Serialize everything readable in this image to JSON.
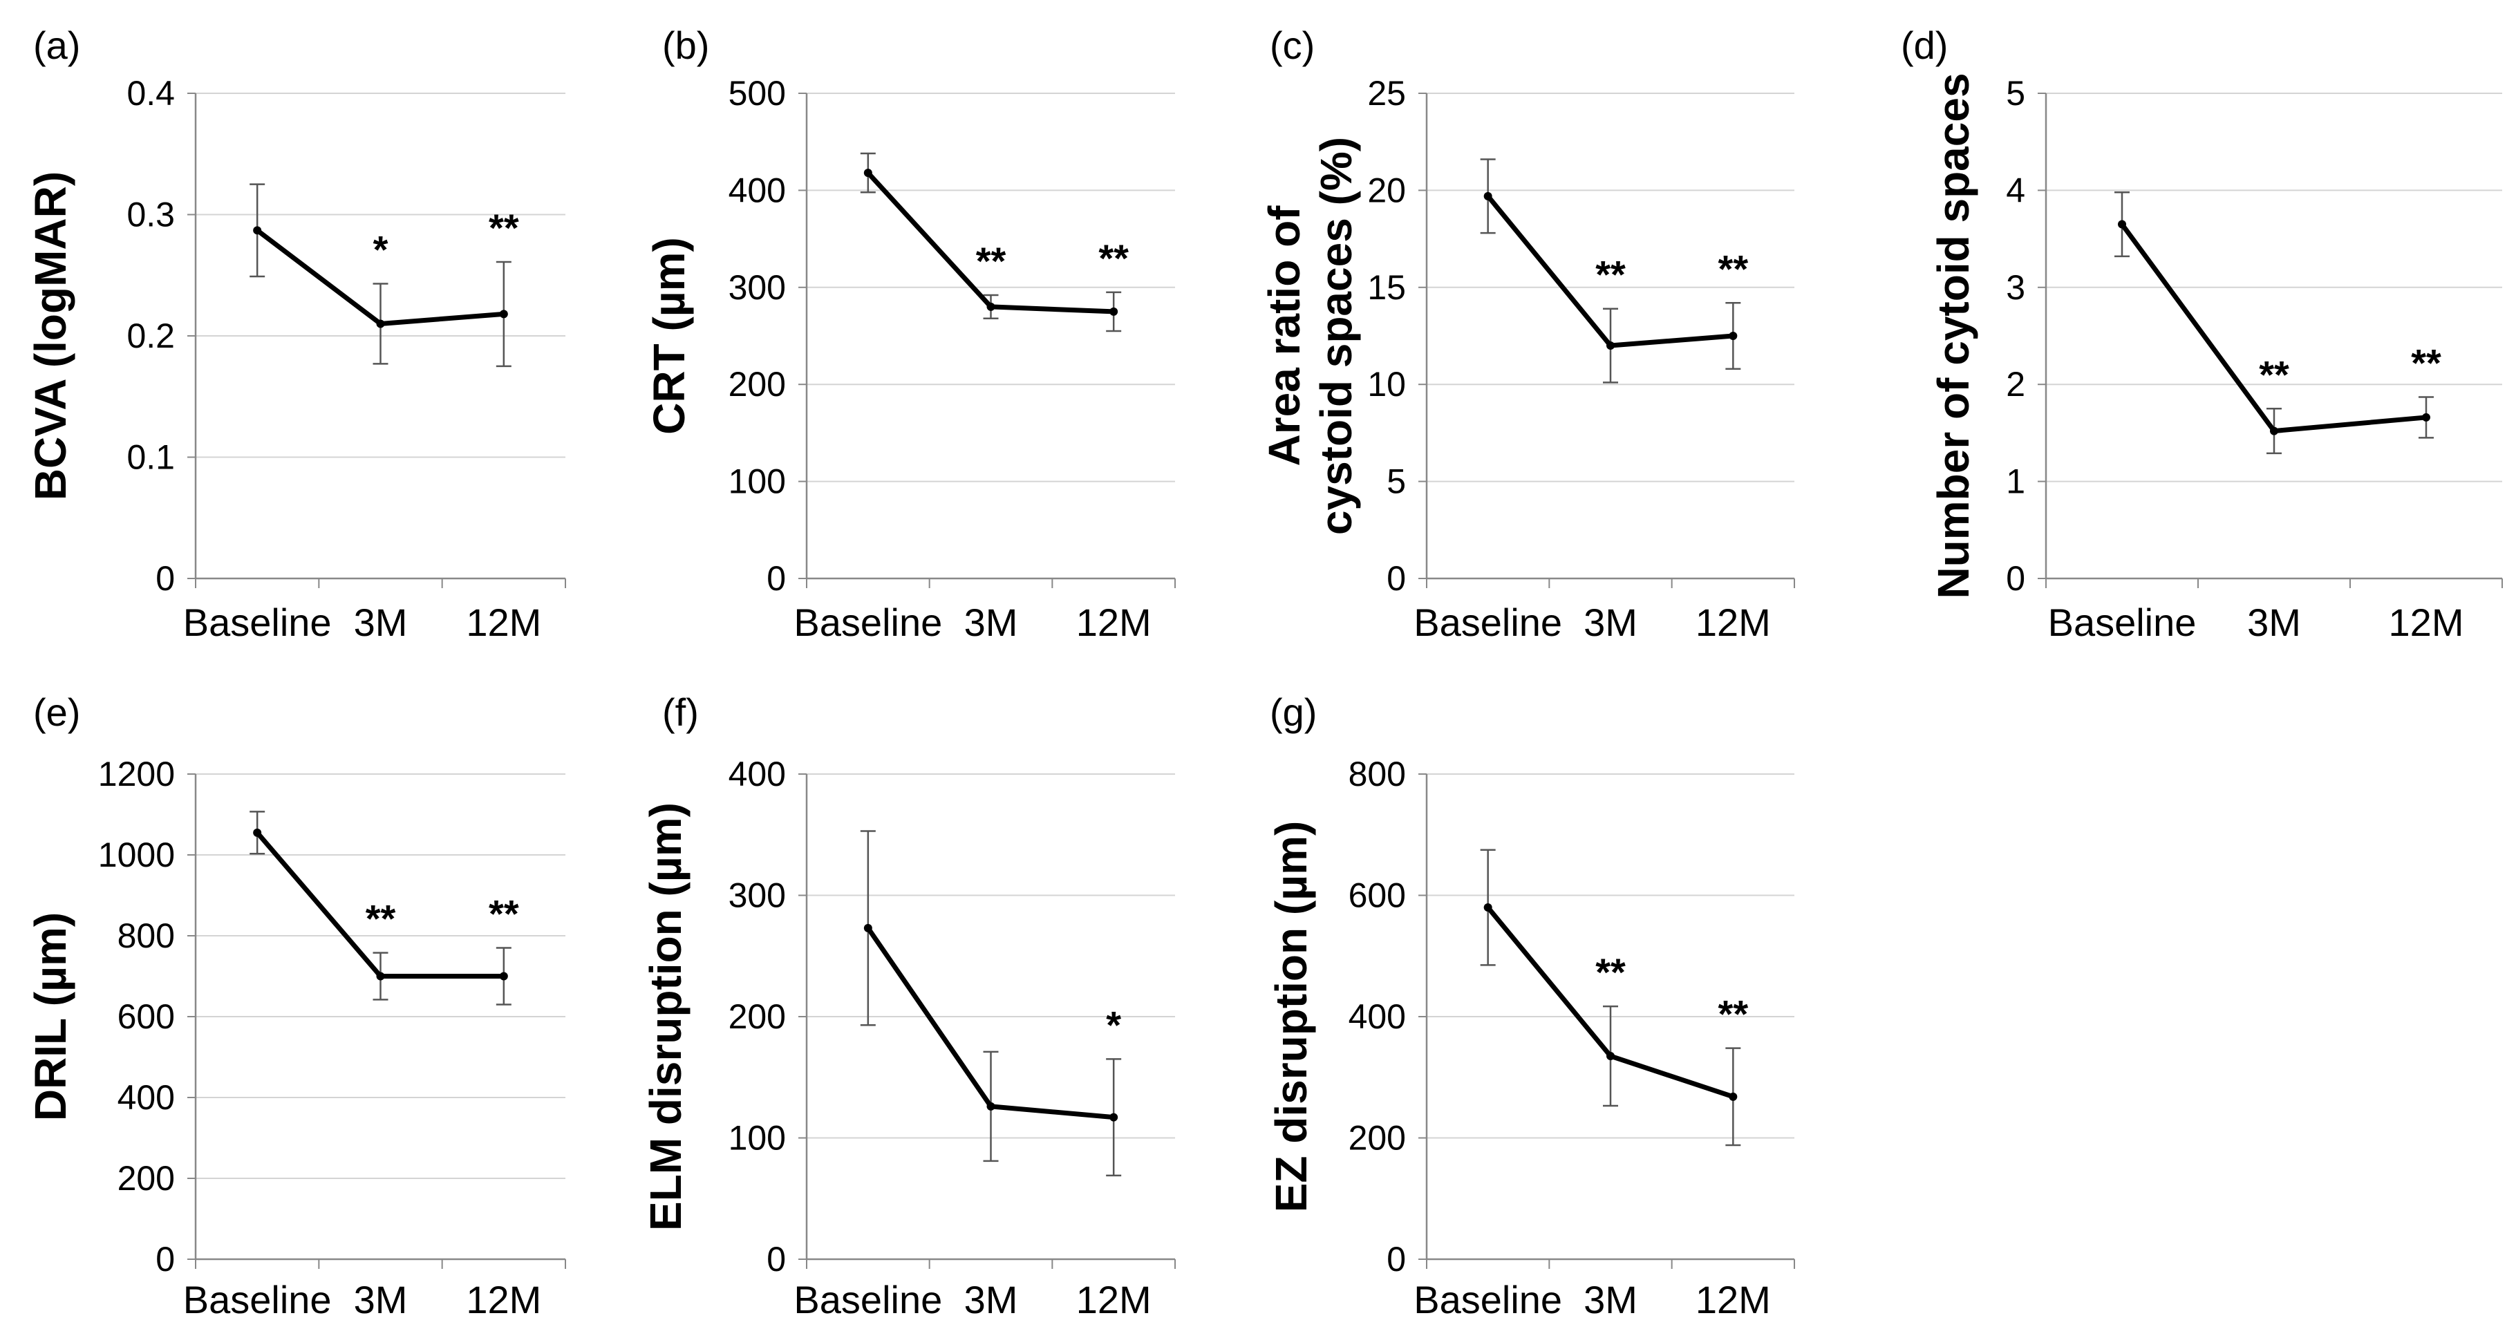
{
  "chart_data": [
    {
      "type": "line",
      "panel": "(a)",
      "ylabel": "BCVA (logMAR)",
      "categories": [
        "Baseline",
        "3M",
        "12M"
      ],
      "values": [
        0.287,
        0.21,
        0.218
      ],
      "errors": [
        0.038,
        0.033,
        0.043
      ],
      "significance": [
        "",
        "*",
        "**"
      ],
      "ylim": [
        0,
        0.4
      ],
      "yticks": [
        0,
        0.1,
        0.2,
        0.3,
        0.4
      ],
      "ytick_labels": [
        "0",
        "0.1",
        "0.2",
        "0.3",
        "0.4"
      ],
      "grid": true
    },
    {
      "type": "line",
      "panel": "(b)",
      "ylabel": "CRT (µm)",
      "categories": [
        "Baseline",
        "3M",
        "12M"
      ],
      "values": [
        418,
        280,
        275
      ],
      "errors": [
        20,
        12,
        20
      ],
      "significance": [
        "",
        "**",
        "**"
      ],
      "ylim": [
        0,
        500
      ],
      "yticks": [
        0,
        100,
        200,
        300,
        400,
        500
      ],
      "ytick_labels": [
        "0",
        "100",
        "200",
        "300",
        "400",
        "500"
      ],
      "grid": true
    },
    {
      "type": "line",
      "panel": "(c)",
      "ylabel": [
        "Area ratio of",
        "cystoid spaces (%)"
      ],
      "categories": [
        "Baseline",
        "3M",
        "12M"
      ],
      "values": [
        19.7,
        12.0,
        12.5
      ],
      "errors": [
        1.9,
        1.9,
        1.7
      ],
      "significance": [
        "",
        "**",
        "**"
      ],
      "ylim": [
        0,
        25
      ],
      "yticks": [
        0,
        5,
        10,
        15,
        20,
        25
      ],
      "ytick_labels": [
        "0",
        "5",
        "10",
        "15",
        "20",
        "25"
      ],
      "grid": true
    },
    {
      "type": "line",
      "panel": "(d)",
      "ylabel": "Number of cytoid spaces",
      "categories": [
        "Baseline",
        "3M",
        "12M"
      ],
      "values": [
        3.65,
        1.52,
        1.66
      ],
      "errors": [
        0.33,
        0.23,
        0.21
      ],
      "significance": [
        "",
        "**",
        "**"
      ],
      "ylim": [
        0,
        5
      ],
      "yticks": [
        0,
        1,
        2,
        3,
        4,
        5
      ],
      "ytick_labels": [
        "0",
        "1",
        "2",
        "3",
        "4",
        "5"
      ],
      "grid": true
    },
    {
      "type": "line",
      "panel": "(e)",
      "ylabel": "DRIL  (µm)",
      "categories": [
        "Baseline",
        "3M",
        "12M"
      ],
      "values": [
        1055,
        700,
        700
      ],
      "errors": [
        52,
        58,
        70
      ],
      "significance": [
        "",
        "**",
        "**"
      ],
      "ylim": [
        0,
        1200
      ],
      "yticks": [
        0,
        200,
        400,
        600,
        800,
        1000,
        1200
      ],
      "ytick_labels": [
        "0",
        "200",
        "400",
        "600",
        "800",
        "1000",
        "1200"
      ],
      "grid": true
    },
    {
      "type": "line",
      "panel": "(f)",
      "ylabel": "ELM disruption (µm)",
      "categories": [
        "Baseline",
        "3M",
        "12M"
      ],
      "values": [
        273,
        126,
        117
      ],
      "errors": [
        80,
        45,
        48
      ],
      "significance": [
        "",
        "",
        "*"
      ],
      "ylim": [
        0,
        400
      ],
      "yticks": [
        0,
        100,
        200,
        300,
        400
      ],
      "ytick_labels": [
        "0",
        "100",
        "200",
        "300",
        "400"
      ],
      "grid": true
    },
    {
      "type": "line",
      "panel": "(g)",
      "ylabel": "EZ disruption (µm)",
      "categories": [
        "Baseline",
        "3M",
        "12M"
      ],
      "values": [
        580,
        335,
        268
      ],
      "errors": [
        95,
        82,
        80
      ],
      "significance": [
        "",
        "**",
        "**"
      ],
      "ylim": [
        0,
        800
      ],
      "yticks": [
        0,
        200,
        400,
        600,
        800
      ],
      "ytick_labels": [
        "0",
        "200",
        "400",
        "600",
        "800"
      ],
      "grid": true
    }
  ]
}
